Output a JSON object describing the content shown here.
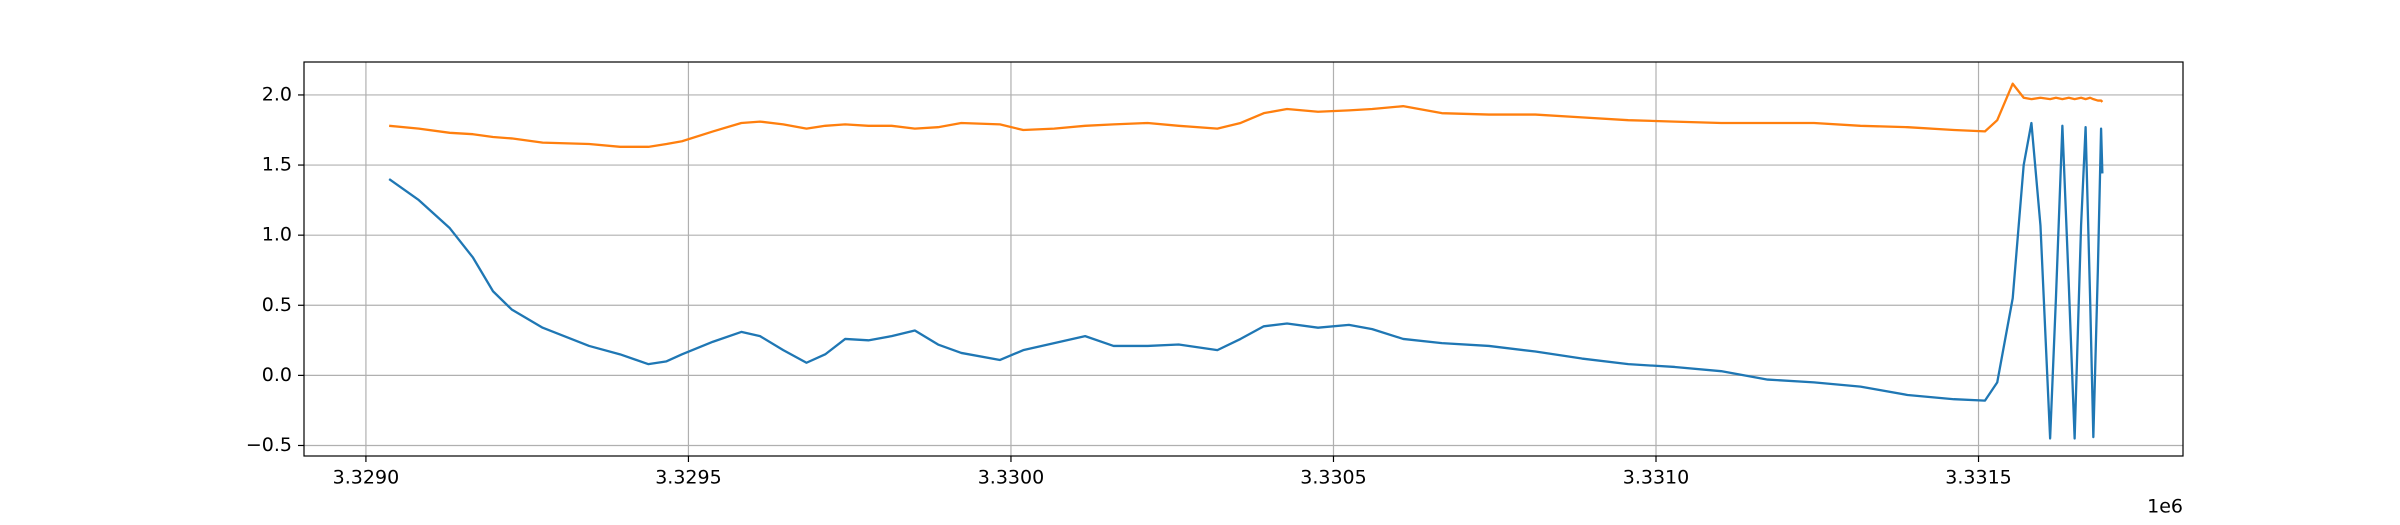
{
  "chart_data": {
    "type": "line",
    "x_offset_label": "1e6",
    "x": [
      3329036,
      3329082,
      3329130,
      3329166,
      3329197,
      3329226,
      3329274,
      3329346,
      3329394,
      3329438,
      3329466,
      3329490,
      3329538,
      3329582,
      3329611,
      3329647,
      3329683,
      3329712,
      3329743,
      3329779,
      3329815,
      3329851,
      3329887,
      3329923,
      3329983,
      3330019,
      3330067,
      3330115,
      3330159,
      3330212,
      3330260,
      3330320,
      3330356,
      3330392,
      3330428,
      3330476,
      3330524,
      3330560,
      3330608,
      3330668,
      3330741,
      3330813,
      3330885,
      3330957,
      3331029,
      3331101,
      3331173,
      3331245,
      3331317,
      3331390,
      3331462,
      3331510,
      3331529,
      3331553,
      3331570,
      3331582,
      3331596,
      3331611,
      3331620,
      3331630,
      3331640,
      3331649,
      3331659,
      3331666,
      3331673,
      3331678,
      3331685,
      3331690,
      3331692
    ],
    "series": [
      {
        "color": "#1f77b4",
        "values": [
          1.4,
          1.25,
          1.05,
          0.84,
          0.6,
          0.47,
          0.34,
          0.21,
          0.15,
          0.08,
          0.1,
          0.15,
          0.24,
          0.31,
          0.28,
          0.18,
          0.09,
          0.15,
          0.26,
          0.25,
          0.28,
          0.32,
          0.22,
          0.16,
          0.11,
          0.18,
          0.23,
          0.28,
          0.21,
          0.21,
          0.22,
          0.18,
          0.26,
          0.35,
          0.37,
          0.34,
          0.36,
          0.33,
          0.26,
          0.23,
          0.21,
          0.17,
          0.12,
          0.08,
          0.06,
          0.03,
          -0.03,
          -0.05,
          -0.08,
          -0.14,
          -0.17,
          -0.18,
          -0.05,
          0.55,
          1.5,
          1.8,
          1.07,
          -0.45,
          0.55,
          1.78,
          0.64,
          -0.45,
          1.07,
          1.77,
          0.55,
          -0.44,
          0.75,
          1.76,
          1.44
        ]
      },
      {
        "color": "#ff7f0e",
        "values": [
          1.78,
          1.76,
          1.73,
          1.72,
          1.7,
          1.69,
          1.66,
          1.65,
          1.63,
          1.63,
          1.65,
          1.67,
          1.74,
          1.8,
          1.81,
          1.79,
          1.76,
          1.78,
          1.79,
          1.78,
          1.78,
          1.76,
          1.77,
          1.8,
          1.79,
          1.75,
          1.76,
          1.78,
          1.79,
          1.8,
          1.78,
          1.76,
          1.8,
          1.87,
          1.9,
          1.88,
          1.89,
          1.9,
          1.92,
          1.87,
          1.86,
          1.86,
          1.84,
          1.82,
          1.81,
          1.8,
          1.8,
          1.8,
          1.78,
          1.77,
          1.75,
          1.74,
          1.82,
          2.08,
          1.98,
          1.97,
          1.98,
          1.97,
          1.98,
          1.97,
          1.98,
          1.97,
          1.98,
          1.97,
          1.98,
          1.97,
          1.96,
          1.96,
          1.95
        ]
      }
    ],
    "xlim": [
      3328904,
      3331817
    ],
    "ylim": [
      -0.575,
      2.235
    ],
    "xticks": [
      {
        "value": 3329000,
        "label": "3.3290"
      },
      {
        "value": 3329500,
        "label": "3.3295"
      },
      {
        "value": 3330000,
        "label": "3.3300"
      },
      {
        "value": 3330500,
        "label": "3.3305"
      },
      {
        "value": 3331000,
        "label": "3.3310"
      },
      {
        "value": 3331500,
        "label": "3.3315"
      }
    ],
    "yticks": [
      {
        "value": -0.5,
        "label": "−0.5"
      },
      {
        "value": 0,
        "label": "0.0"
      },
      {
        "value": 0.5,
        "label": "0.5"
      },
      {
        "value": 1,
        "label": "1.0"
      },
      {
        "value": 1.5,
        "label": "1.5"
      },
      {
        "value": 2,
        "label": "2.0"
      }
    ],
    "grid": true
  }
}
